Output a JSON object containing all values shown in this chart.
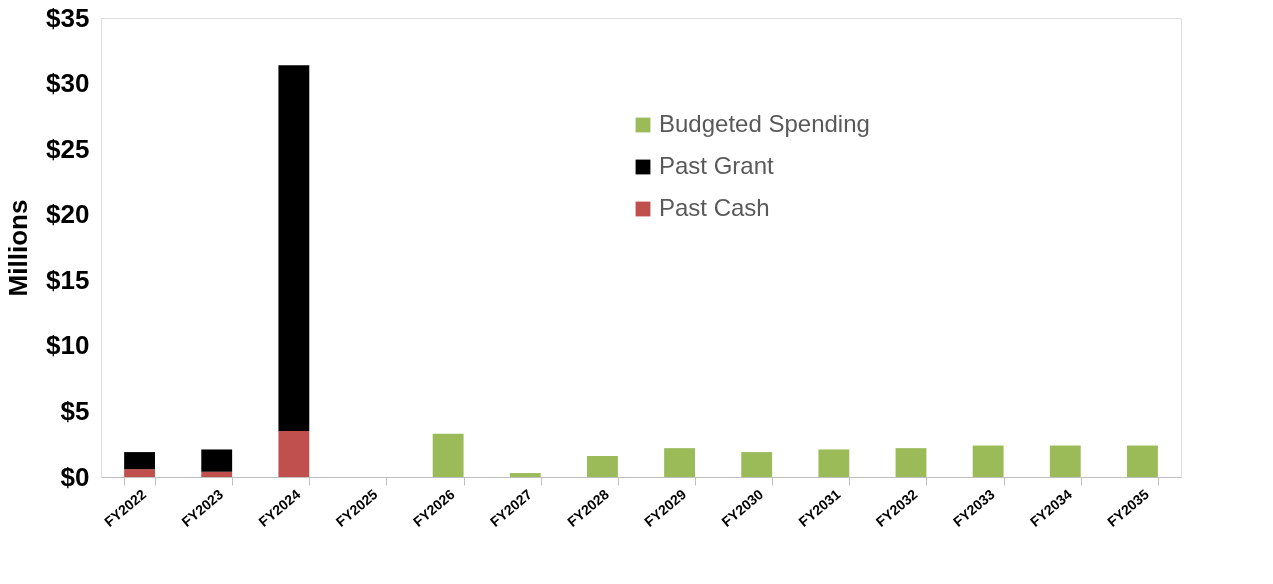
{
  "chart_data": {
    "type": "bar",
    "stacked": true,
    "ylabel": "Millions",
    "categories": [
      "FY2022",
      "FY2023",
      "FY2024",
      "FY2025",
      "FY2026",
      "FY2027",
      "FY2028",
      "FY2029",
      "FY2030",
      "FY2031",
      "FY2032",
      "FY2033",
      "FY2034",
      "FY2035"
    ],
    "series": [
      {
        "name": "Past Cash",
        "color": "#c0504d",
        "values": [
          0.6,
          0.4,
          3.5,
          null,
          null,
          null,
          null,
          null,
          null,
          null,
          null,
          null,
          null,
          null
        ]
      },
      {
        "name": "Past Grant",
        "color": "#000000",
        "values": [
          1.3,
          1.7,
          27.9,
          null,
          null,
          null,
          null,
          null,
          null,
          null,
          null,
          null,
          null,
          null
        ]
      },
      {
        "name": "Budgeted Spending",
        "color": "#9bbb59",
        "values": [
          null,
          null,
          null,
          null,
          3.3,
          0.3,
          1.6,
          2.2,
          1.9,
          2.1,
          2.2,
          2.4,
          2.4,
          2.4
        ]
      }
    ],
    "ylim": [
      0,
      35
    ],
    "yticks": [
      {
        "value": 0,
        "label": "$0"
      },
      {
        "value": 5,
        "label": "$5"
      },
      {
        "value": 10,
        "label": "$10"
      },
      {
        "value": 15,
        "label": "$15"
      },
      {
        "value": 20,
        "label": "$20"
      },
      {
        "value": 25,
        "label": "$25"
      },
      {
        "value": 30,
        "label": "$30"
      },
      {
        "value": 35,
        "label": "$35"
      }
    ],
    "grid": false,
    "legend": "top right"
  }
}
